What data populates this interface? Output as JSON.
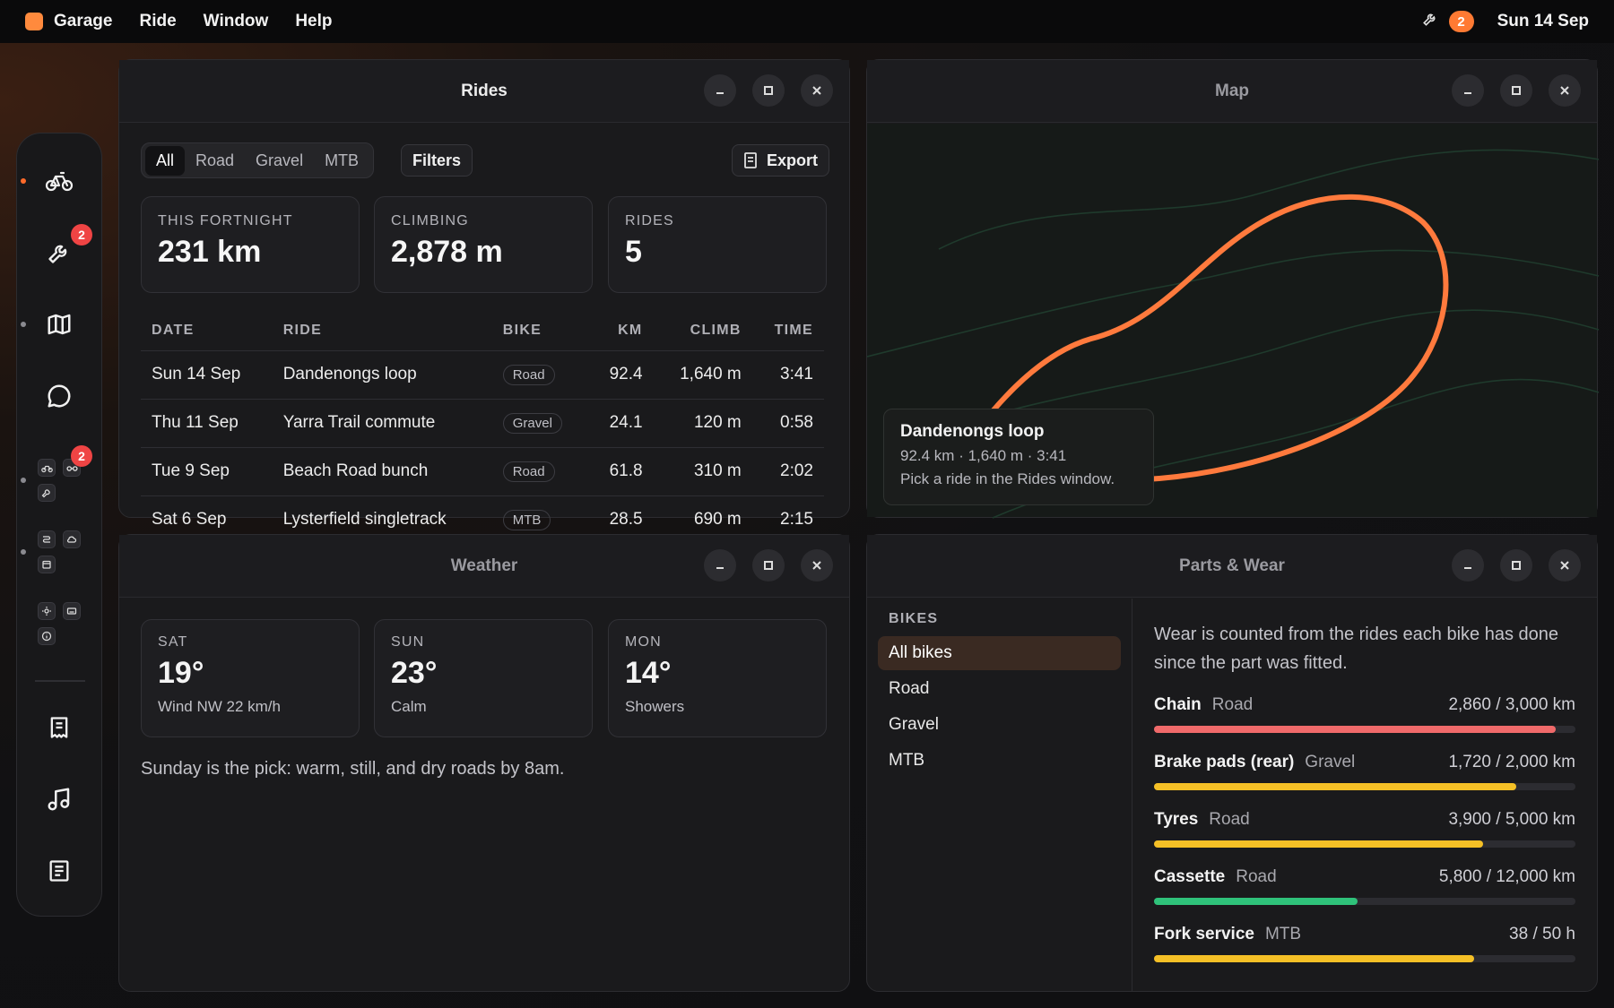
{
  "menubar": {
    "app_name": "Garage",
    "menus": [
      "Ride",
      "Window",
      "Help"
    ],
    "notification_count": "2",
    "date": "Sun 14 Sep"
  },
  "dock": {
    "maintenance_badge": "2",
    "group_badge": "2"
  },
  "rides": {
    "title": "Rides",
    "tabs": [
      "All",
      "Road",
      "Gravel",
      "MTB"
    ],
    "active_tab": "All",
    "filters_label": "Filters",
    "export_label": "Export",
    "stats": [
      {
        "label": "THIS FORTNIGHT",
        "value": "231 km"
      },
      {
        "label": "CLIMBING",
        "value": "2,878 m"
      },
      {
        "label": "RIDES",
        "value": "5"
      }
    ],
    "columns": [
      "DATE",
      "RIDE",
      "BIKE",
      "KM",
      "CLIMB",
      "TIME"
    ],
    "rows": [
      {
        "date": "Sun 14 Sep",
        "ride": "Dandenongs loop",
        "bike": "Road",
        "km": "92.4",
        "climb": "1,640 m",
        "time": "3:41"
      },
      {
        "date": "Thu 11 Sep",
        "ride": "Yarra Trail commute",
        "bike": "Gravel",
        "km": "24.1",
        "climb": "120 m",
        "time": "0:58"
      },
      {
        "date": "Tue 9 Sep",
        "ride": "Beach Road bunch",
        "bike": "Road",
        "km": "61.8",
        "climb": "310 m",
        "time": "2:02"
      },
      {
        "date": "Sat 6 Sep",
        "ride": "Lysterfield singletrack",
        "bike": "MTB",
        "km": "28.5",
        "climb": "690 m",
        "time": "2:15"
      }
    ]
  },
  "map": {
    "title": "Map",
    "card_title": "Dandenongs loop",
    "card_stats": "92.4 km · 1,640 m · 3:41",
    "card_hint": "Pick a ride in the Rides window.",
    "route_color": "#ff7a3d"
  },
  "weather": {
    "title": "Weather",
    "days": [
      {
        "day": "SAT",
        "temp": "19°",
        "cond": "Wind NW 22 km/h"
      },
      {
        "day": "SUN",
        "temp": "23°",
        "cond": "Calm"
      },
      {
        "day": "MON",
        "temp": "14°",
        "cond": "Showers"
      }
    ],
    "note": "Sunday is the pick: warm, still, and dry roads by 8am."
  },
  "parts": {
    "title": "Parts & Wear",
    "bikes_header": "BIKES",
    "bikes": [
      "All bikes",
      "Road",
      "Gravel",
      "MTB"
    ],
    "selected_bike": "All bikes",
    "intro": "Wear is counted from the rides each bike has done since the part was fitted.",
    "items": [
      {
        "name": "Chain",
        "bike": "Road",
        "amount": "2,860 / 3,000 km",
        "wear": 0.953,
        "color": "#f06a6a"
      },
      {
        "name": "Brake pads (rear)",
        "bike": "Gravel",
        "amount": "1,720 / 2,000 km",
        "wear": 0.86,
        "color": "#f5c026"
      },
      {
        "name": "Tyres",
        "bike": "Road",
        "amount": "3,900 / 5,000 km",
        "wear": 0.78,
        "color": "#f5c026"
      },
      {
        "name": "Cassette",
        "bike": "Road",
        "amount": "5,800 / 12,000 km",
        "wear": 0.483,
        "color": "#2fc27a"
      },
      {
        "name": "Fork service",
        "bike": "MTB",
        "amount": "38 / 50 h",
        "wear": 0.76,
        "color": "#f5c026"
      }
    ]
  }
}
